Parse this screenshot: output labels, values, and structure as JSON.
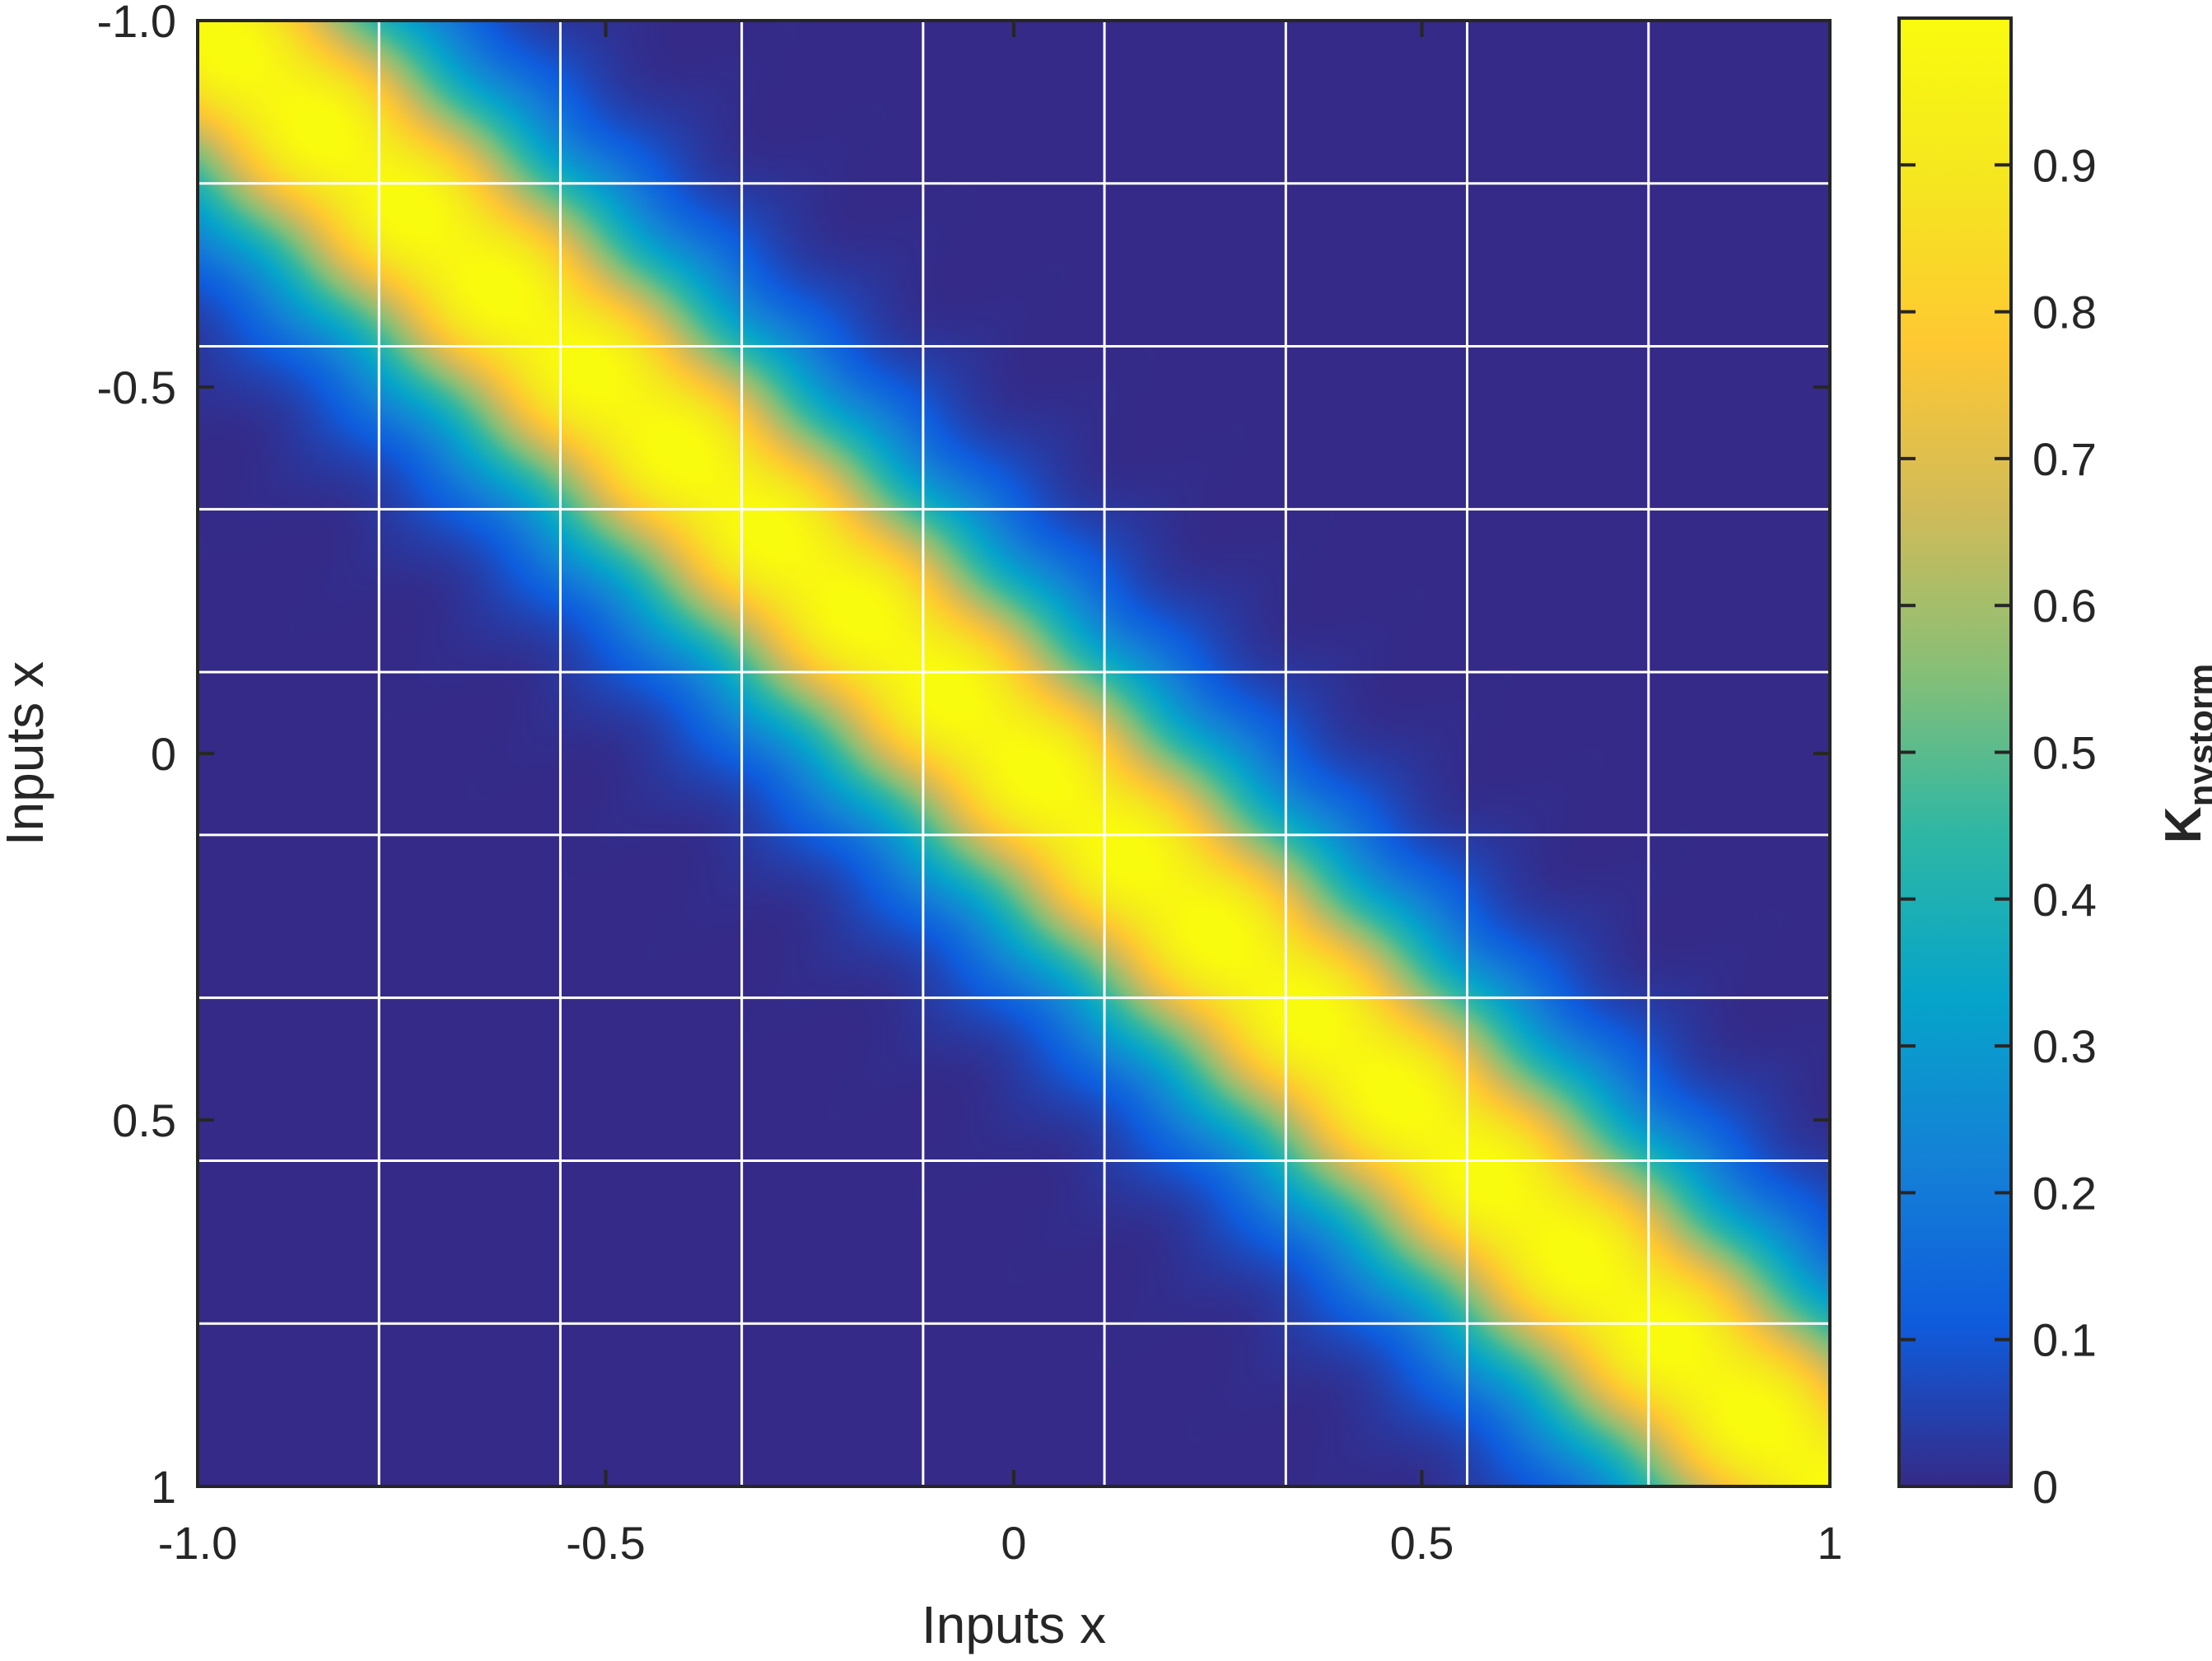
{
  "chart_data": {
    "type": "heatmap",
    "title": "",
    "xlabel": "Inputs x",
    "ylabel": "Inputs x",
    "xlim": [
      -1,
      1
    ],
    "ylim": [
      -1,
      1
    ],
    "y_axis_direction": "reversed",
    "xticks": [
      -1.0,
      -0.5,
      0,
      0.5,
      1
    ],
    "xtick_labels": [
      "-1.0",
      "-0.5",
      "0",
      "0.5",
      "1"
    ],
    "yticks": [
      -1.0,
      -0.5,
      0,
      0.5,
      1
    ],
    "ytick_labels": [
      "-1.0",
      "-0.5",
      "0",
      "0.5",
      "1"
    ],
    "grid": true,
    "grid_color": "#ffffff",
    "grid_divisions": 9,
    "surface": {
      "function": "exp(-(x - y)^2 / (2 * lengthscale^2))",
      "lengthscale": 0.17,
      "ripple_amplitude": 0.02,
      "ripple_period": 0.22,
      "description_of_values": "value 1 on the diagonal x = y, decaying to about 0 for |x - y| greater than 0.55"
    },
    "colorbar": {
      "label_main": "K",
      "label_sub": "nystorm",
      "clim": [
        0,
        1
      ],
      "ticks": [
        0,
        0.1,
        0.2,
        0.3,
        0.4,
        0.5,
        0.6,
        0.7,
        0.8,
        0.9
      ],
      "tick_labels": [
        "0",
        "0.1",
        "0.2",
        "0.3",
        "0.4",
        "0.5",
        "0.6",
        "0.7",
        "0.8",
        "0.9"
      ],
      "colormap": "parula",
      "colormap_stops": [
        "#352a87",
        "#0f5cdd",
        "#1481d6",
        "#06a4ca",
        "#2eb7a4",
        "#87bf77",
        "#d1bb59",
        "#fec832",
        "#f5e620",
        "#f9fb0e"
      ]
    }
  }
}
